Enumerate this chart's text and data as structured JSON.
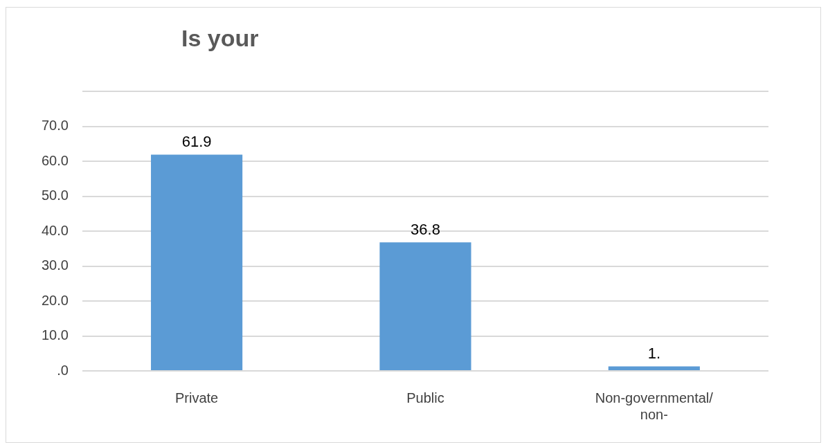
{
  "chart_data": {
    "type": "bar",
    "title": "Is your",
    "categories": [
      "Private",
      "Public",
      "Non-governmental/ non-"
    ],
    "values": [
      61.9,
      36.8,
      1.3
    ],
    "value_labels": [
      "61.9",
      "36.8",
      "1."
    ],
    "color": "#5b9bd5",
    "ylim": [
      0,
      80
    ],
    "yticks": [
      {
        "value": 0,
        "label": ".0"
      },
      {
        "value": 10,
        "label": "10.0"
      },
      {
        "value": 20,
        "label": "20.0"
      },
      {
        "value": 30,
        "label": "30.0"
      },
      {
        "value": 40,
        "label": "40.0"
      },
      {
        "value": 50,
        "label": "50.0"
      },
      {
        "value": 60,
        "label": "60.0"
      },
      {
        "value": 70,
        "label": "70.0"
      },
      {
        "value": 80,
        "label": null
      }
    ],
    "grid": "y"
  }
}
